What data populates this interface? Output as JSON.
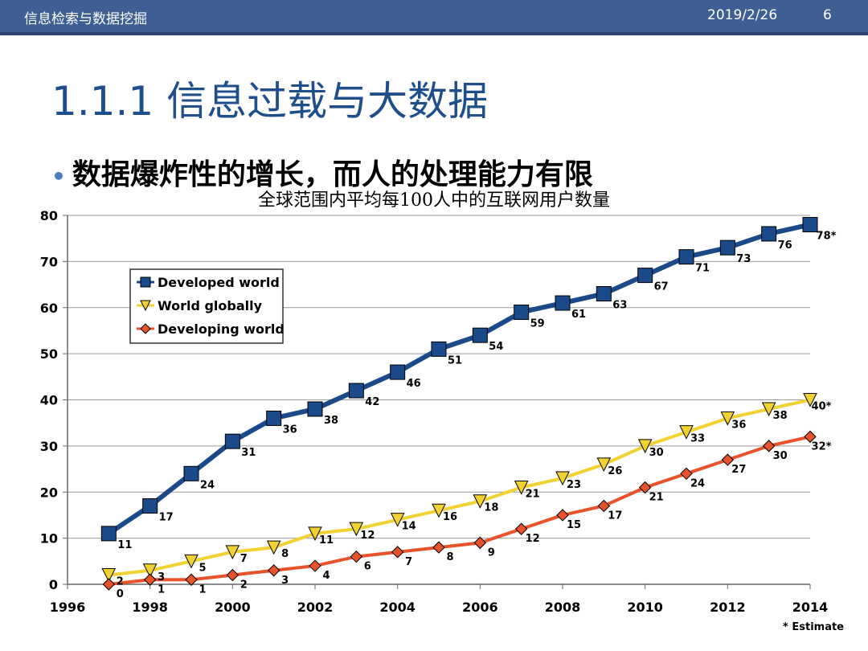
{
  "header": {
    "left": "信息检索与数据挖掘",
    "date": "2019/2/26",
    "page": "6"
  },
  "slide": {
    "title": "1.1.1 信息过载与大数据",
    "bullet": "数据爆炸性的增长，而人的处理能力有限"
  },
  "chart_data": {
    "type": "line",
    "title": "全球范围内平均每100人中的互联网用户数量",
    "xlim": [
      1996,
      2014
    ],
    "ylim": [
      0,
      80
    ],
    "x_ticks": [
      1996,
      1998,
      2000,
      2002,
      2004,
      2006,
      2008,
      2010,
      2012,
      2014
    ],
    "y_ticks": [
      0,
      10,
      20,
      30,
      40,
      50,
      60,
      70,
      80
    ],
    "x": [
      1997,
      1998,
      1999,
      2000,
      2001,
      2002,
      2003,
      2004,
      2005,
      2006,
      2007,
      2008,
      2009,
      2010,
      2011,
      2012,
      2013,
      2014
    ],
    "series": [
      {
        "name": "Developed world",
        "color": "#1a4a8a",
        "marker": "square",
        "values": [
          11,
          17,
          24,
          31,
          36,
          38,
          42,
          46,
          51,
          54,
          59,
          61,
          63,
          67,
          71,
          73,
          76,
          78
        ],
        "labels": [
          "11",
          "17",
          "24",
          "31",
          "36",
          "38",
          "42",
          "46",
          "51",
          "54",
          "59",
          "61",
          "63",
          "67",
          "71",
          "73",
          "76",
          "78*"
        ]
      },
      {
        "name": "World globally",
        "color": "#f2d230",
        "marker": "triangle-down",
        "values": [
          2,
          3,
          5,
          7,
          8,
          11,
          12,
          14,
          16,
          18,
          21,
          23,
          26,
          30,
          33,
          36,
          38,
          40
        ],
        "labels": [
          "2",
          "3",
          "5",
          "7",
          "8",
          "11",
          "12",
          "14",
          "16",
          "18",
          "21",
          "23",
          "26",
          "30",
          "33",
          "36",
          "38",
          "40*"
        ]
      },
      {
        "name": "Developing world",
        "color": "#e8532a",
        "marker": "diamond",
        "values": [
          0,
          1,
          1,
          2,
          3,
          4,
          6,
          7,
          8,
          9,
          12,
          15,
          17,
          21,
          24,
          27,
          30,
          32
        ],
        "labels": [
          "0",
          "1",
          "1",
          "2",
          "3",
          "4",
          "6",
          "7",
          "8",
          "9",
          "12",
          "15",
          "17",
          "21",
          "24",
          "27",
          "30",
          "32*"
        ]
      }
    ],
    "legend_position": "top-left",
    "grid": true,
    "annotation": "* Estimate"
  }
}
